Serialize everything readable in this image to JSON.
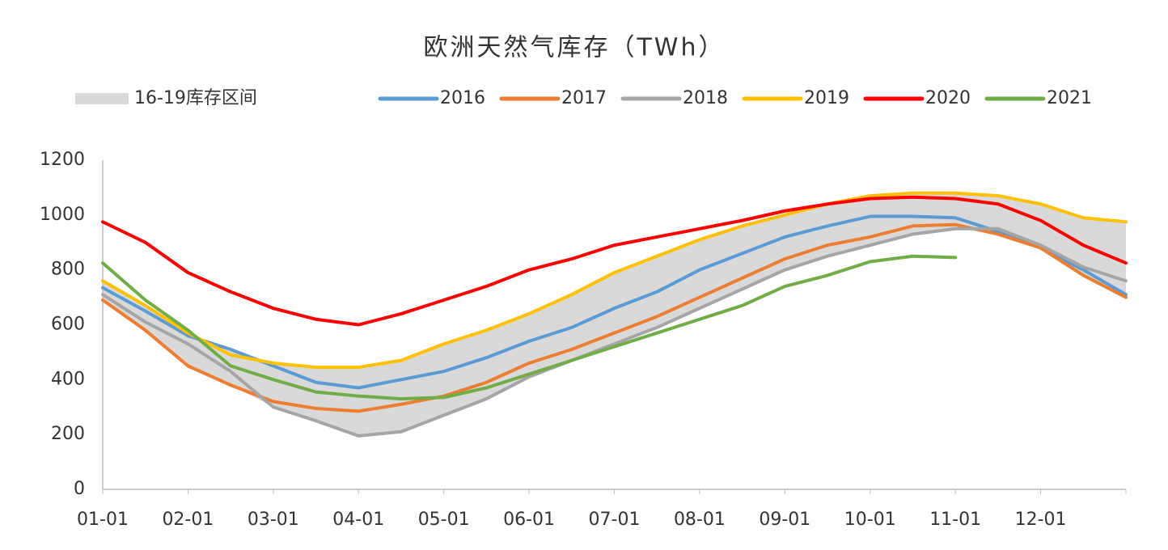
{
  "chart_data": {
    "type": "line",
    "title": "欧洲天然气库存（TWh）",
    "categories": [
      "01-01",
      null,
      "02-01",
      null,
      "03-01",
      null,
      "04-01",
      null,
      "05-01",
      null,
      "06-01",
      null,
      "07-01",
      null,
      "08-01",
      null,
      "09-01",
      null,
      "10-01",
      null,
      "11-01",
      null,
      "12-01",
      null,
      null
    ],
    "band": {
      "name": "16-19库存区间",
      "color": "#d9d9d9",
      "low": [
        690,
        580,
        450,
        380,
        300,
        250,
        195,
        210,
        270,
        330,
        410,
        470,
        530,
        590,
        660,
        730,
        800,
        850,
        890,
        930,
        950,
        930,
        880,
        780,
        700
      ],
      "high": [
        760,
        670,
        570,
        510,
        460,
        445,
        445,
        470,
        530,
        580,
        640,
        710,
        790,
        850,
        910,
        960,
        1000,
        1040,
        1070,
        1080,
        1080,
        1070,
        1040,
        990,
        975
      ]
    },
    "series": [
      {
        "name": "2016",
        "color": "#5b9bd5",
        "values": [
          735,
          650,
          560,
          510,
          450,
          390,
          370,
          400,
          430,
          480,
          540,
          590,
          660,
          720,
          800,
          860,
          920,
          960,
          995,
          995,
          990,
          940,
          880,
          800,
          710
        ]
      },
      {
        "name": "2017",
        "color": "#ed7d31",
        "values": [
          690,
          580,
          450,
          380,
          320,
          295,
          285,
          310,
          340,
          390,
          460,
          510,
          570,
          630,
          700,
          770,
          840,
          890,
          920,
          960,
          965,
          930,
          880,
          780,
          700
        ]
      },
      {
        "name": "2018",
        "color": "#a5a5a5",
        "values": [
          710,
          610,
          530,
          430,
          300,
          250,
          195,
          210,
          270,
          330,
          410,
          470,
          530,
          590,
          660,
          730,
          800,
          850,
          890,
          930,
          950,
          950,
          890,
          810,
          760
        ]
      },
      {
        "name": "2019",
        "color": "#ffc000",
        "values": [
          760,
          670,
          570,
          490,
          460,
          445,
          445,
          470,
          530,
          580,
          640,
          710,
          790,
          850,
          910,
          960,
          1000,
          1040,
          1070,
          1080,
          1080,
          1070,
          1040,
          990,
          975
        ]
      },
      {
        "name": "2020",
        "color": "#ff0000",
        "values": [
          975,
          900,
          790,
          720,
          660,
          620,
          600,
          640,
          690,
          740,
          800,
          840,
          890,
          920,
          950,
          980,
          1015,
          1040,
          1060,
          1065,
          1060,
          1040,
          980,
          890,
          825
        ]
      },
      {
        "name": "2021",
        "color": "#70ad47",
        "values": [
          825,
          690,
          580,
          450,
          400,
          355,
          340,
          330,
          335,
          370,
          420,
          470,
          520,
          570,
          620,
          670,
          740,
          780,
          830,
          850,
          845,
          null,
          null,
          null,
          null
        ]
      }
    ],
    "ylim": [
      0,
      1200
    ],
    "yticks": [
      0,
      200,
      400,
      600,
      800,
      1000,
      1200
    ],
    "grid": false,
    "legend": "top"
  }
}
